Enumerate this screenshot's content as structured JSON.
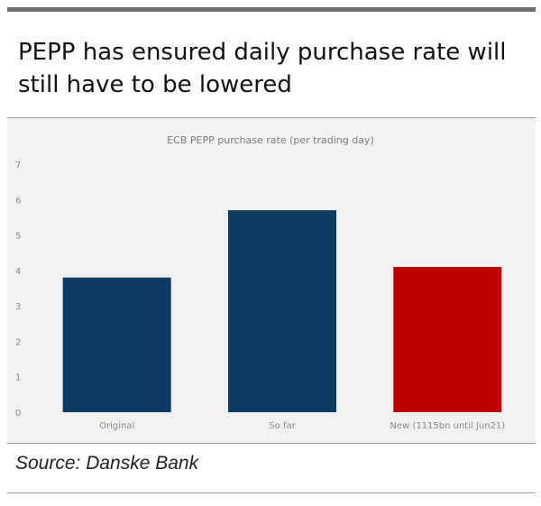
{
  "header": {
    "title": "PEPP has ensured daily purchase rate will still have to be lowered"
  },
  "chart_data": {
    "type": "bar",
    "title": "ECB PEPP purchase rate (per trading day)",
    "xlabel": "",
    "ylabel": "",
    "ylim": [
      0,
      7
    ],
    "yticks": [
      0,
      1,
      2,
      3,
      4,
      5,
      6,
      7
    ],
    "categories": [
      "Original",
      "So far",
      "New (1115bn until Jun21)"
    ],
    "values": [
      3.8,
      5.7,
      4.1
    ],
    "colors": [
      "#0b3c61",
      "#0b3c61",
      "#c00000"
    ],
    "grid": false,
    "legend": false
  },
  "footer": {
    "source": "Source: Danske Bank"
  }
}
